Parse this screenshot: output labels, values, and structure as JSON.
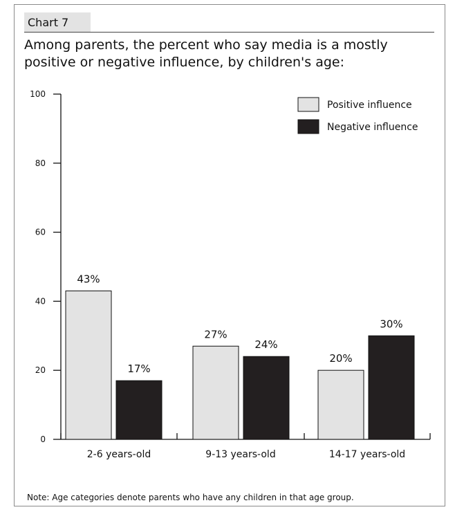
{
  "header": {
    "tab_label": "Chart 7",
    "title": "Among parents, the percent who say media is a mostly positive or negative influence, by children's age:"
  },
  "note": "Note: Age categories denote parents who have any children in that age group.",
  "colors": {
    "positive": "#e3e3e3",
    "negative": "#231f20",
    "axis": "#111111"
  },
  "chart_data": {
    "type": "bar",
    "categories": [
      "2-6 years-old",
      "9-13 years-old",
      "14-17 years-old"
    ],
    "series": [
      {
        "name": "Positive influence",
        "values": [
          43,
          27,
          20
        ],
        "labels": [
          "43%",
          "27%",
          "20%"
        ]
      },
      {
        "name": "Negative influence",
        "values": [
          17,
          24,
          30
        ],
        "labels": [
          "17%",
          "24%",
          "30%"
        ]
      }
    ],
    "ylim": [
      0,
      100
    ],
    "yticks": [
      0,
      20,
      40,
      60,
      80,
      100
    ],
    "legend_position": "top-right",
    "grid": false
  }
}
